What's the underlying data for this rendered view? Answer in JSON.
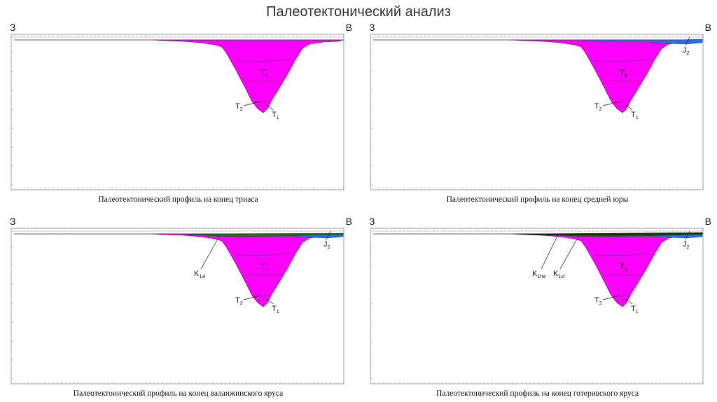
{
  "page_title": "Палеотектонический анализ",
  "colors": {
    "triassic": "#ff00ff",
    "jurassic": "#2a6fe0",
    "cretaceous_vl": "#1f6e1f",
    "cretaceous_ha": "#0d3d0d",
    "frame": "#888888"
  },
  "panels": [
    {
      "caption": "Палеотектонический профиль на конец триаса",
      "west": "З",
      "east": "В",
      "labels": [
        {
          "main": "T",
          "sub": "3"
        },
        {
          "main": "T",
          "sub": "2"
        },
        {
          "main": "T",
          "sub": "1"
        }
      ]
    },
    {
      "caption": "Палеотектонический профиль на конец средней юры",
      "west": "З",
      "east": "В",
      "labels": [
        {
          "main": "T",
          "sub": "3"
        },
        {
          "main": "T",
          "sub": "2"
        },
        {
          "main": "T",
          "sub": "1"
        },
        {
          "main": "J",
          "sub": "2"
        }
      ]
    },
    {
      "caption": "Палеотектонический профиль на конец валанжинского яруса",
      "west": "З",
      "east": "В",
      "labels": [
        {
          "main": "T",
          "sub": "3"
        },
        {
          "main": "T",
          "sub": "2"
        },
        {
          "main": "T",
          "sub": "1"
        },
        {
          "main": "J",
          "sub": "2"
        },
        {
          "main": "K",
          "sub": "1vl"
        }
      ]
    },
    {
      "caption": "Палеотектонический профиль на конец готеривского яруса",
      "west": "З",
      "east": "В",
      "labels": [
        {
          "main": "T",
          "sub": "3"
        },
        {
          "main": "T",
          "sub": "2"
        },
        {
          "main": "T",
          "sub": "1"
        },
        {
          "main": "J",
          "sub": "2"
        },
        {
          "main": "K",
          "sub": "1vl"
        },
        {
          "main": "K",
          "sub": "1ha"
        }
      ]
    }
  ]
}
